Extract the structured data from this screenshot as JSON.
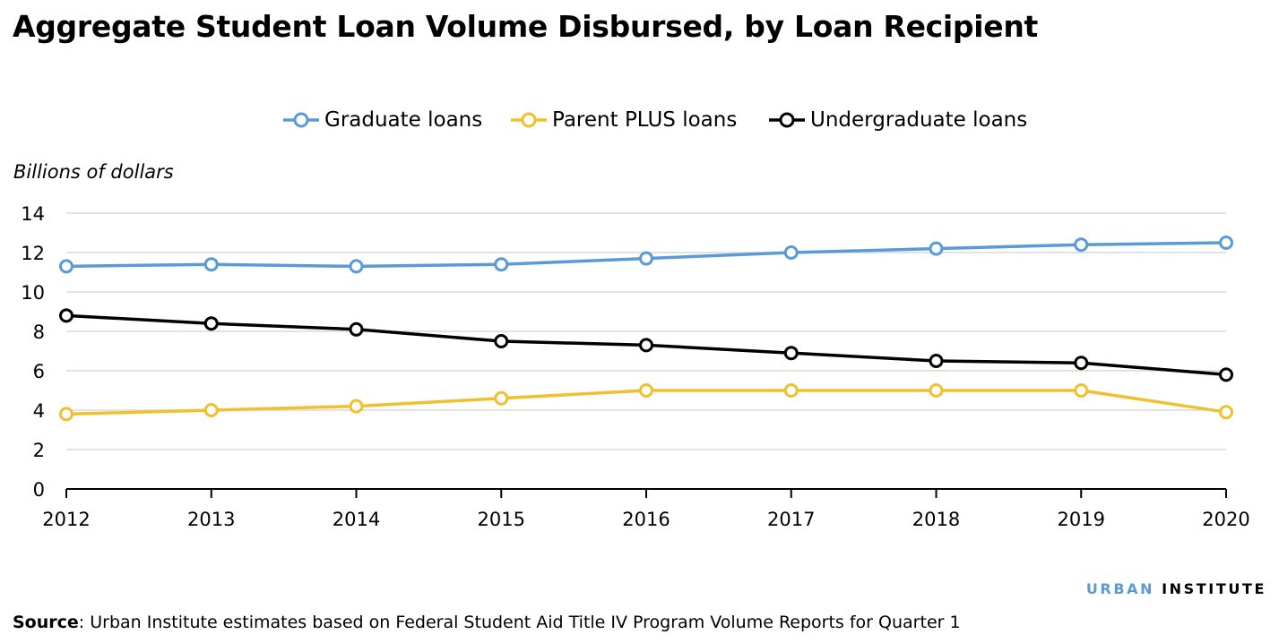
{
  "page": {
    "title": "Aggregate Student Loan Volume Disbursed, by Loan Recipient",
    "source_label": "Source",
    "source_text": ": Urban Institute estimates based on Federal Student Aid Title IV Program Volume Reports for Quarter 1",
    "brand_part1": "URBAN",
    "brand_part2": "INSTITUTE"
  },
  "chart_data": {
    "type": "line",
    "title": "Aggregate Student Loan Volume Disbursed, by Loan Recipient",
    "xlabel": "",
    "ylabel": "Billions of dollars",
    "x": [
      "2012",
      "2013",
      "2014",
      "2015",
      "2016",
      "2017",
      "2018",
      "2019",
      "2020"
    ],
    "ylim": [
      0,
      14
    ],
    "yticks": [
      0,
      2,
      4,
      6,
      8,
      10,
      12,
      14
    ],
    "grid": true,
    "legend_position": "top-center",
    "series": [
      {
        "name": "Graduate loans",
        "color": "#5b9bd5",
        "values": [
          11.3,
          11.4,
          11.3,
          11.4,
          11.7,
          12.0,
          12.2,
          12.4,
          12.5
        ]
      },
      {
        "name": "Parent PLUS loans",
        "color": "#f0c02e",
        "values": [
          3.8,
          4.0,
          4.2,
          4.6,
          5.0,
          5.0,
          5.0,
          5.0,
          3.9
        ]
      },
      {
        "name": "Undergraduate loans",
        "color": "#000000",
        "values": [
          8.8,
          8.4,
          8.1,
          7.5,
          7.3,
          6.9,
          6.5,
          6.4,
          5.8
        ]
      }
    ]
  }
}
